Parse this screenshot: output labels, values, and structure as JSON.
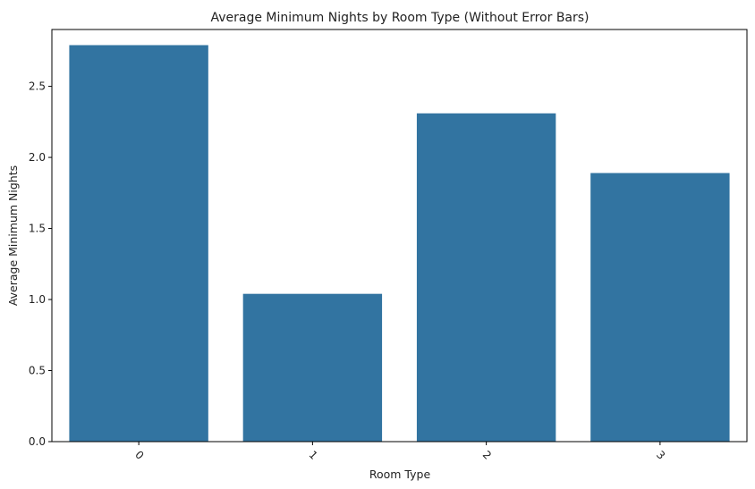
{
  "chart_data": {
    "type": "bar",
    "title": "Average Minimum Nights by Room Type (Without Error Bars)",
    "xlabel": "Room Type",
    "ylabel": "Average Minimum Nights",
    "categories": [
      "0",
      "1",
      "2",
      "3"
    ],
    "values": [
      2.79,
      1.04,
      2.31,
      1.89
    ],
    "ylim": [
      0,
      2.9
    ],
    "yticks": [
      "0.0",
      "0.5",
      "1.0",
      "1.5",
      "2.0",
      "2.5"
    ],
    "bar_color": "#3274a1",
    "grid": false,
    "legend": "none"
  }
}
